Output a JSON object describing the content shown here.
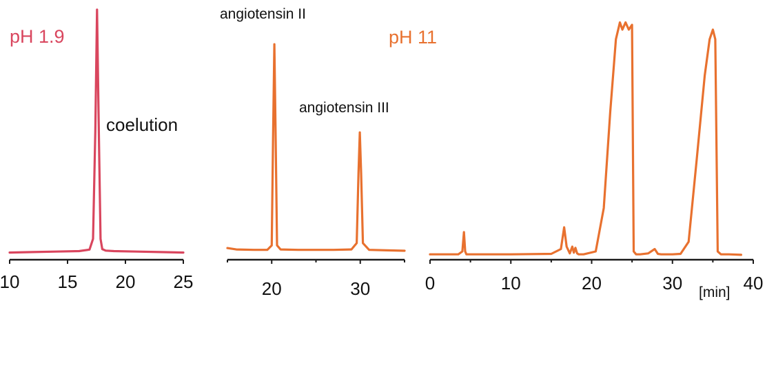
{
  "colors": {
    "ph_low": "#d9465e",
    "ph_high": "#e8712f",
    "axis": "#1a1a1a"
  },
  "chart_data": [
    {
      "type": "line",
      "title": "pH 1.9",
      "xlabel": "",
      "ylabel": "",
      "xlim": [
        10,
        25
      ],
      "ylim": [
        0,
        1.0
      ],
      "x_ticks": [
        10,
        15,
        20,
        25
      ],
      "x_tick_labels": [
        "10",
        "15",
        "20",
        "25"
      ],
      "grid": false,
      "series": [
        {
          "color_key": "ph_low",
          "x": [
            10,
            12,
            14,
            16,
            16.9,
            17.2,
            17.4,
            17.55,
            17.7,
            17.85,
            18.0,
            18.3,
            19,
            21,
            23,
            25
          ],
          "y": [
            0.004,
            0.006,
            0.008,
            0.01,
            0.016,
            0.06,
            0.5,
            1.0,
            0.5,
            0.06,
            0.018,
            0.012,
            0.01,
            0.008,
            0.006,
            0.004
          ]
        }
      ],
      "annotations": [
        {
          "text": "coelution",
          "x": 18.4,
          "y": 0.5
        }
      ]
    },
    {
      "type": "line",
      "title": "",
      "xlabel": "",
      "ylabel": "",
      "xlim": [
        15,
        35
      ],
      "ylim": [
        0,
        1.0
      ],
      "x_ticks": [
        20,
        30
      ],
      "x_tick_labels": [
        "20",
        "30"
      ],
      "grid": false,
      "series": [
        {
          "color_key": "ph_high",
          "x": [
            15,
            16,
            18,
            19.5,
            20.0,
            20.15,
            20.3,
            20.45,
            20.6,
            21,
            23,
            25,
            27,
            29,
            29.6,
            29.8,
            29.95,
            30.1,
            30.3,
            31,
            33,
            35
          ],
          "y": [
            0.018,
            0.012,
            0.01,
            0.01,
            0.03,
            0.5,
            0.92,
            0.5,
            0.03,
            0.012,
            0.01,
            0.01,
            0.01,
            0.012,
            0.04,
            0.35,
            0.53,
            0.35,
            0.04,
            0.01,
            0.008,
            0.006
          ]
        }
      ],
      "annotations": [
        {
          "text": "angiotensin II",
          "x": 20.3,
          "y": 0.92
        },
        {
          "text": "angiotensin III",
          "x": 29.95,
          "y": 0.53
        }
      ]
    },
    {
      "type": "line",
      "title": "pH 11",
      "xlabel": "[min]",
      "ylabel": "",
      "xlim": [
        0,
        40
      ],
      "ylim": [
        0,
        1.0
      ],
      "x_ticks": [
        0,
        10,
        20,
        30,
        40
      ],
      "x_tick_labels": [
        "0",
        "10",
        "20",
        "30",
        "40"
      ],
      "grid": false,
      "series": [
        {
          "color_key": "ph_high",
          "x": [
            0,
            3.5,
            4.0,
            4.2,
            4.35,
            4.5,
            4.8,
            5.2,
            10,
            15,
            16.2,
            16.6,
            16.9,
            17.3,
            17.6,
            17.8,
            18.0,
            18.2,
            18.4,
            19,
            20.5,
            21.5,
            22.3,
            23.0,
            23.5,
            23.8,
            24.2,
            24.6,
            25.0,
            25.2,
            25.5,
            26,
            27,
            27.8,
            28.2,
            28.6,
            30,
            31,
            32,
            33,
            34,
            34.6,
            35.0,
            35.3,
            35.6,
            36,
            37,
            38.5
          ],
          "y": [
            0.008,
            0.008,
            0.02,
            0.1,
            0.02,
            0.008,
            0.008,
            0.008,
            0.008,
            0.01,
            0.03,
            0.12,
            0.04,
            0.012,
            0.04,
            0.015,
            0.035,
            0.012,
            0.008,
            0.008,
            0.02,
            0.2,
            0.6,
            0.9,
            0.97,
            0.94,
            0.97,
            0.94,
            0.96,
            0.02,
            0.008,
            0.008,
            0.012,
            0.03,
            0.01,
            0.008,
            0.008,
            0.01,
            0.06,
            0.4,
            0.75,
            0.9,
            0.94,
            0.9,
            0.02,
            0.008,
            0.008,
            0.006
          ]
        }
      ],
      "annotations": []
    }
  ]
}
